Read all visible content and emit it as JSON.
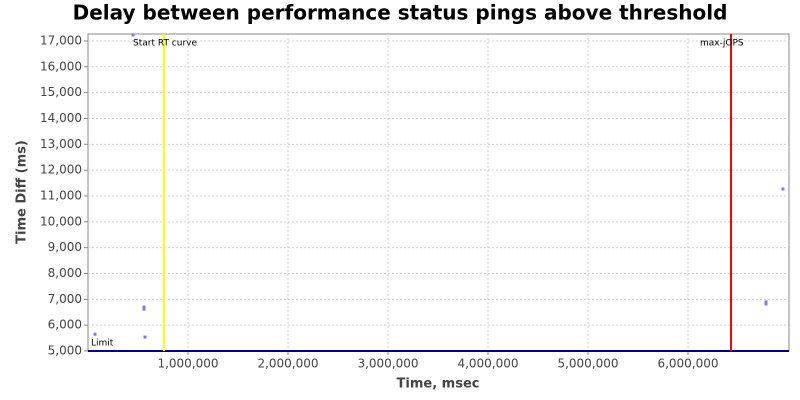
{
  "chart_data": {
    "type": "scatter",
    "title": "Delay between performance status pings above threshold",
    "x_label": "Time, msec",
    "y_label": "Time Diff (ms)",
    "xlim": [
      0,
      7010000
    ],
    "ylim": [
      5000,
      17270
    ],
    "xticks": [
      {
        "value": 1000000,
        "label": "1,000,000"
      },
      {
        "value": 2000000,
        "label": "2,000,000"
      },
      {
        "value": 3000000,
        "label": "3,000,000"
      },
      {
        "value": 4000000,
        "label": "4,000,000"
      },
      {
        "value": 5000000,
        "label": "5,000,000"
      },
      {
        "value": 6000000,
        "label": "6,000,000"
      }
    ],
    "yticks": [
      {
        "value": 5000,
        "label": "5,000"
      },
      {
        "value": 6000,
        "label": "6,000"
      },
      {
        "value": 7000,
        "label": "7,000"
      },
      {
        "value": 8000,
        "label": "8,000"
      },
      {
        "value": 9000,
        "label": "9,000"
      },
      {
        "value": 10000,
        "label": "10,000"
      },
      {
        "value": 11000,
        "label": "11,000"
      },
      {
        "value": 12000,
        "label": "12,000"
      },
      {
        "value": 13000,
        "label": "13,000"
      },
      {
        "value": 14000,
        "label": "14,000"
      },
      {
        "value": 15000,
        "label": "15,000"
      },
      {
        "value": 16000,
        "label": "16,000"
      },
      {
        "value": 17000,
        "label": "17,000"
      }
    ],
    "grid": true,
    "series": [
      {
        "color": "#7b7bef",
        "x": [
          70000,
          450000,
          560000,
          560000,
          570000,
          6780000,
          6780000,
          6950000
        ],
        "values": [
          5650,
          17230,
          6700,
          6620,
          5540,
          6900,
          6820,
          11270
        ]
      }
    ],
    "x_markers": [
      {
        "value": 760000,
        "label": "Start RT curve",
        "color": "#ffff00"
      },
      {
        "value": 6430000,
        "label": "max-jOPS",
        "color": "#ff0000"
      }
    ],
    "y_markers": [
      {
        "value": 5000,
        "label": "Limit",
        "color": "#000080"
      }
    ]
  }
}
